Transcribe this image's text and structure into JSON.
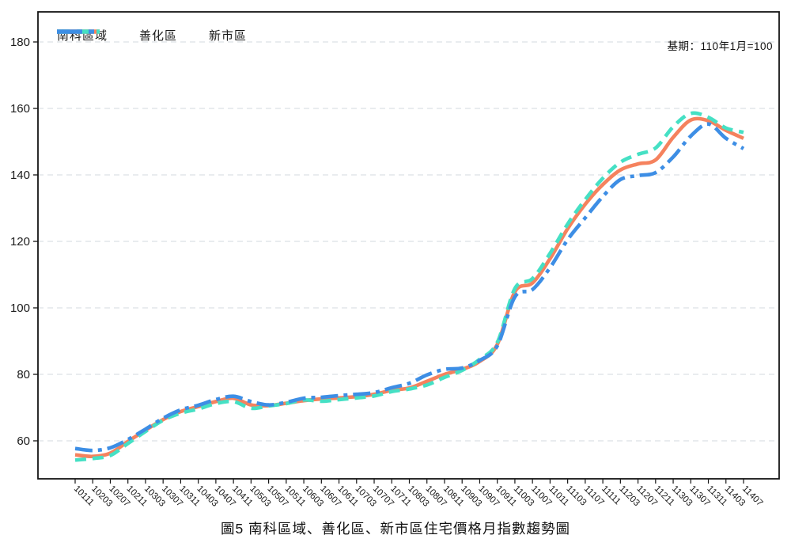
{
  "chart_data": {
    "type": "line",
    "caption": "圖5 南科區域、善化區、新市區住宅價格月指數趨勢圖",
    "note": "基期：110年1月=100",
    "xlabel": "",
    "ylabel": "",
    "ylim": [
      48,
      190
    ],
    "yticks": [
      60,
      80,
      100,
      120,
      140,
      160,
      180
    ],
    "grid": "horizontal-dashed",
    "legend_position": "top-left-inside",
    "categories": [
      "10111",
      "10203",
      "10207",
      "10211",
      "10303",
      "10307",
      "10311",
      "10403",
      "10407",
      "10411",
      "10503",
      "10507",
      "10511",
      "10603",
      "10607",
      "10611",
      "10703",
      "10707",
      "10711",
      "10803",
      "10807",
      "10811",
      "10903",
      "10907",
      "10911",
      "11003",
      "11007",
      "11011",
      "11103",
      "11107",
      "11111",
      "11203",
      "11207",
      "11211",
      "11303",
      "11307",
      "11311",
      "11403",
      "11407"
    ],
    "series": [
      {
        "name": "南科區域",
        "color": "#F5825E",
        "style": "solid",
        "values": [
          55.8,
          55.3,
          56.3,
          59.8,
          63.2,
          66.4,
          68.8,
          70.3,
          71.8,
          72.8,
          70.8,
          70.6,
          71.3,
          72.1,
          72.6,
          72.9,
          73.3,
          74.0,
          75.2,
          75.9,
          77.9,
          80.0,
          81.5,
          83.9,
          89.0,
          104.8,
          107.5,
          114.8,
          123.8,
          131.2,
          137.1,
          141.5,
          143.3,
          144.5,
          151.3,
          156.5,
          156.3,
          153.4,
          151.0
        ]
      },
      {
        "name": "善化區",
        "color": "#45E0C4",
        "style": "dashed",
        "values": [
          54.2,
          54.7,
          55.6,
          59.2,
          62.8,
          66.2,
          68.3,
          69.6,
          71.2,
          71.8,
          69.8,
          70.5,
          71.2,
          72.3,
          71.9,
          72.4,
          72.9,
          73.5,
          74.8,
          75.6,
          76.8,
          79.1,
          81.2,
          84.5,
          89.6,
          105.8,
          108.8,
          116.4,
          125.2,
          132.6,
          139.0,
          143.8,
          146.2,
          148.1,
          154.5,
          158.5,
          157.3,
          154.1,
          152.8
        ]
      },
      {
        "name": "新市區",
        "color": "#3D8EE5",
        "style": "dashdot",
        "values": [
          57.7,
          57.1,
          57.9,
          60.4,
          63.5,
          66.8,
          69.3,
          70.7,
          72.4,
          73.4,
          71.8,
          70.8,
          71.6,
          72.8,
          73.1,
          73.6,
          74.0,
          74.5,
          76.0,
          77.3,
          79.8,
          81.5,
          81.9,
          84.2,
          88.6,
          103.3,
          105.5,
          112.1,
          120.5,
          127.1,
          133.5,
          138.6,
          139.8,
          140.7,
          145.4,
          151.7,
          155.3,
          151.0,
          147.9
        ]
      }
    ],
    "colors": {
      "frame": "#141414",
      "grid": "#dce1e5",
      "tick_text": "#1a1a1a"
    }
  }
}
